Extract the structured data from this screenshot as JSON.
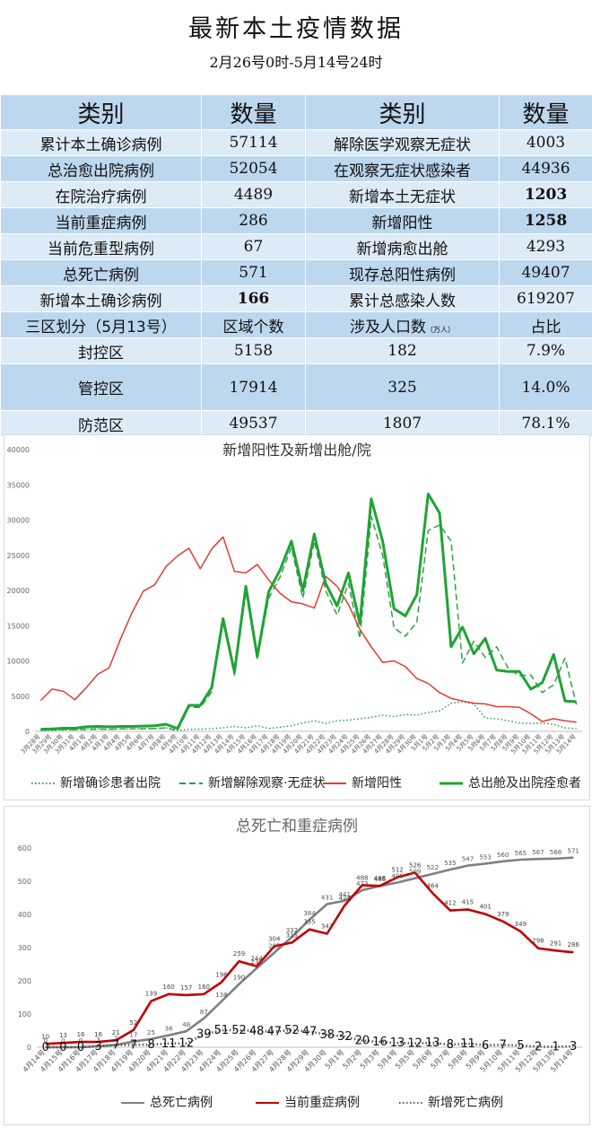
{
  "header": {
    "title": "最新本土疫情数据",
    "subtitle": "2月26号0时-5月14号24时"
  },
  "table": {
    "head": [
      "类别",
      "数量",
      "类别",
      "数量"
    ],
    "rows": [
      {
        "l": "累计本土确诊病例",
        "lv": "57114",
        "r": "解除医学观察无症状",
        "rv": "4003"
      },
      {
        "l": "总治愈出院病例",
        "lv": "52054",
        "r": "在观察无症状感染者",
        "rv": "44936"
      },
      {
        "l": "在院治疗病例",
        "lv": "4489",
        "r": "新增本土无症状",
        "rv": "1203"
      },
      {
        "l": "当前重症病例",
        "lv": "286",
        "r": "新增阳性",
        "rv": "1258"
      },
      {
        "l": "当前危重型病例",
        "lv": "67",
        "r": "新增病愈出舱",
        "rv": "4293"
      },
      {
        "l": "总死亡病例",
        "lv": "571",
        "r": "现存总阳性病例",
        "rv": "49407"
      },
      {
        "l": "新增本土确诊病例",
        "lv": "166",
        "r": "累计总感染人数",
        "rv": "619207"
      }
    ],
    "zone_head": {
      "c1": "三区划分（5月13号）",
      "c2": "区域个数",
      "c3": "涉及人口数",
      "c3_unit": "（万人）",
      "c4": "占比"
    },
    "zones": [
      {
        "name": "封控区",
        "count": "5158",
        "pop": "182",
        "pct": "7.9%"
      },
      {
        "name": "管控区",
        "count": "17914",
        "pop": "325",
        "pct": "14.0%"
      },
      {
        "name": "防范区",
        "count": "49537",
        "pop": "1807",
        "pct": "78.1%"
      }
    ]
  },
  "chart_data": [
    {
      "type": "line",
      "title": "新增阳性及新增出舱/院",
      "ylim": [
        0,
        40000
      ],
      "yticks": [
        "0",
        "5000",
        "10000",
        "15000",
        "20000",
        "25000",
        "30000",
        "35000",
        "40000"
      ],
      "x": [
        "3月28号",
        "3月29号",
        "3月30号",
        "3月31号",
        "4月1号",
        "4月2号",
        "4月3号",
        "4月4号",
        "4月5号",
        "4月6号",
        "4月7号",
        "4月8号",
        "4月9号",
        "4月10号",
        "4月11号",
        "4月12号",
        "4月13号",
        "4月14号",
        "4月15号",
        "4月16号",
        "4月17号",
        "4月18号",
        "4月19号",
        "4月20号",
        "4月21号",
        "4月22号",
        "4月23号",
        "4月24号",
        "4月25号",
        "4月26号",
        "4月27号",
        "4月28号",
        "4月29号",
        "4月30号",
        "5月1号",
        "5月2号",
        "5月3号",
        "5月4号",
        "5月5号",
        "5月6号",
        "5月7号",
        "5月8号",
        "5月9号",
        "5月10号",
        "5月11号",
        "5月12号",
        "5月13号",
        "5月14号"
      ],
      "series": [
        {
          "name": "新增确诊患者出院",
          "color": "#2ea043",
          "dash": "dot",
          "values": [
            100,
            150,
            200,
            200,
            400,
            400,
            300,
            350,
            350,
            400,
            400,
            500,
            100,
            300,
            300,
            400,
            500,
            700,
            500,
            800,
            400,
            600,
            800,
            1200,
            1500,
            1100,
            1500,
            1600,
            1800,
            2000,
            2300,
            2100,
            2400,
            2300,
            2700,
            2900,
            4000,
            4200,
            3900,
            1900,
            1800,
            1500,
            1200,
            1100,
            1200,
            1000,
            500,
            400
          ]
        },
        {
          "name": "新增解除观察·无症状",
          "color": "#2ea043",
          "dash": "dash",
          "values": [
            200,
            200,
            250,
            250,
            250,
            300,
            300,
            350,
            350,
            350,
            400,
            500,
            100,
            3400,
            3400,
            5600,
            15500,
            8000,
            19800,
            10200,
            18900,
            21900,
            26100,
            18900,
            27000,
            20000,
            16500,
            21000,
            13200,
            30500,
            25000,
            14700,
            13500,
            15500,
            28500,
            29300,
            27000,
            9700,
            12800,
            10500,
            12000,
            9000,
            7900,
            8000,
            5500,
            6600,
            10400,
            3800
          ]
        },
        {
          "name": "新增阳性",
          "color": "#e03c31",
          "dash": "solid",
          "values": [
            4400,
            6000,
            5700,
            4500,
            6200,
            8100,
            9000,
            13100,
            16800,
            19900,
            20800,
            23400,
            24900,
            26000,
            23100,
            25900,
            27600,
            22700,
            22500,
            23700,
            21500,
            19600,
            18400,
            18100,
            17500,
            22000,
            20600,
            18000,
            14500,
            12000,
            9800,
            10000,
            9200,
            7500,
            6800,
            5500,
            4700,
            4300,
            4000,
            3900,
            3500,
            3500,
            3400,
            2500,
            1400,
            1800,
            1500,
            1300
          ]
        },
        {
          "name": "总出舱及出院痊愈者",
          "color": "#1fa336",
          "dash": "solid",
          "bold": true,
          "values": [
            300,
            350,
            450,
            450,
            650,
            700,
            650,
            700,
            700,
            750,
            800,
            1000,
            400,
            3700,
            3700,
            6200,
            16000,
            8400,
            20600,
            10600,
            19800,
            22900,
            27000,
            20000,
            28000,
            21000,
            17800,
            22500,
            15300,
            33000,
            27000,
            17400,
            16400,
            19400,
            33700,
            31000,
            12000,
            14800,
            11000,
            13200,
            8700,
            8500,
            8500,
            6000,
            6900,
            10900,
            4300,
            4200
          ]
        }
      ]
    },
    {
      "type": "line",
      "title": "总死亡和重症病例",
      "ylim": [
        0,
        600
      ],
      "yticks": [
        "0",
        "100",
        "200",
        "300",
        "400",
        "500",
        "600"
      ],
      "x": [
        "4月14号",
        "4月15号",
        "4月16号",
        "4月17号",
        "4月18号",
        "4月19号",
        "4月20号",
        "4月21号",
        "4月22号",
        "4月23号",
        "4月24号",
        "4月25号",
        "4月26号",
        "4月27号",
        "4月28号",
        "4月29号",
        "4月30号",
        "5月1号",
        "5月2号",
        "5月3号",
        "5月4号",
        "5月5号",
        "5月6号",
        "5月7号",
        "5月8号",
        "5月9号",
        "5月10号",
        "5月11号",
        "5月12号",
        "5月13号",
        "5月14号"
      ],
      "series": [
        {
          "name": "总死亡病例",
          "color": "#808080",
          "dash": "solid",
          "values": [
            0,
            0,
            0,
            3,
            7,
            17,
            25,
            36,
            48,
            87,
            138,
            190,
            238,
            285,
            332,
            384,
            431,
            441,
            473,
            486,
            496,
            509,
            522,
            535,
            547,
            553,
            560,
            565,
            567,
            568,
            571
          ]
        },
        {
          "name": "当前重症病例",
          "color": "#c00000",
          "dash": "solid",
          "values": [
            10,
            13,
            16,
            16,
            21,
            52,
            139,
            160,
            157,
            160,
            196,
            259,
            244,
            304,
            315,
            355,
            342,
            427,
            488,
            486,
            512,
            526,
            464,
            412,
            415,
            401,
            379,
            349,
            298,
            291,
            286
          ]
        },
        {
          "name": "新增死亡病例",
          "color": "#555555",
          "dash": "dot",
          "values": [
            0,
            0,
            0,
            3,
            7,
            7,
            8,
            11,
            12,
            39,
            51,
            52,
            48,
            47,
            52,
            47,
            38,
            32,
            20,
            16,
            13,
            12,
            13,
            8,
            11,
            6,
            7,
            5,
            2,
            1,
            3
          ]
        }
      ],
      "labels_death_cum": [
        "0",
        "0",
        "0",
        "3",
        "7",
        "17",
        "25",
        "36",
        "48",
        "87",
        "138",
        "190",
        "238",
        "285",
        "332",
        "384",
        "431",
        "441",
        "473",
        "486",
        "496",
        "509",
        "522",
        "535",
        "547",
        "553",
        "560",
        "565",
        "567",
        "568",
        "571"
      ],
      "labels_severe": [
        "10",
        "13",
        "16",
        "16",
        "21",
        "52",
        "139",
        "160",
        "157",
        "160",
        "196",
        "259",
        "244",
        "304",
        "315",
        "355",
        "342",
        "427",
        "488",
        "486",
        "512",
        "526",
        "464",
        "412",
        "415",
        "401",
        "379",
        "349",
        "298",
        "291",
        "286"
      ],
      "labels_new_death": [
        "0",
        "0",
        "0",
        "3",
        "7",
        "7",
        "8",
        "11",
        "12",
        "39",
        "51",
        "52",
        "48",
        "47",
        "52",
        "47",
        "38",
        "32",
        "20",
        "16",
        "13",
        "12",
        "13",
        "8",
        "11",
        "6",
        "7",
        "5",
        "2",
        "1",
        "3"
      ]
    }
  ]
}
